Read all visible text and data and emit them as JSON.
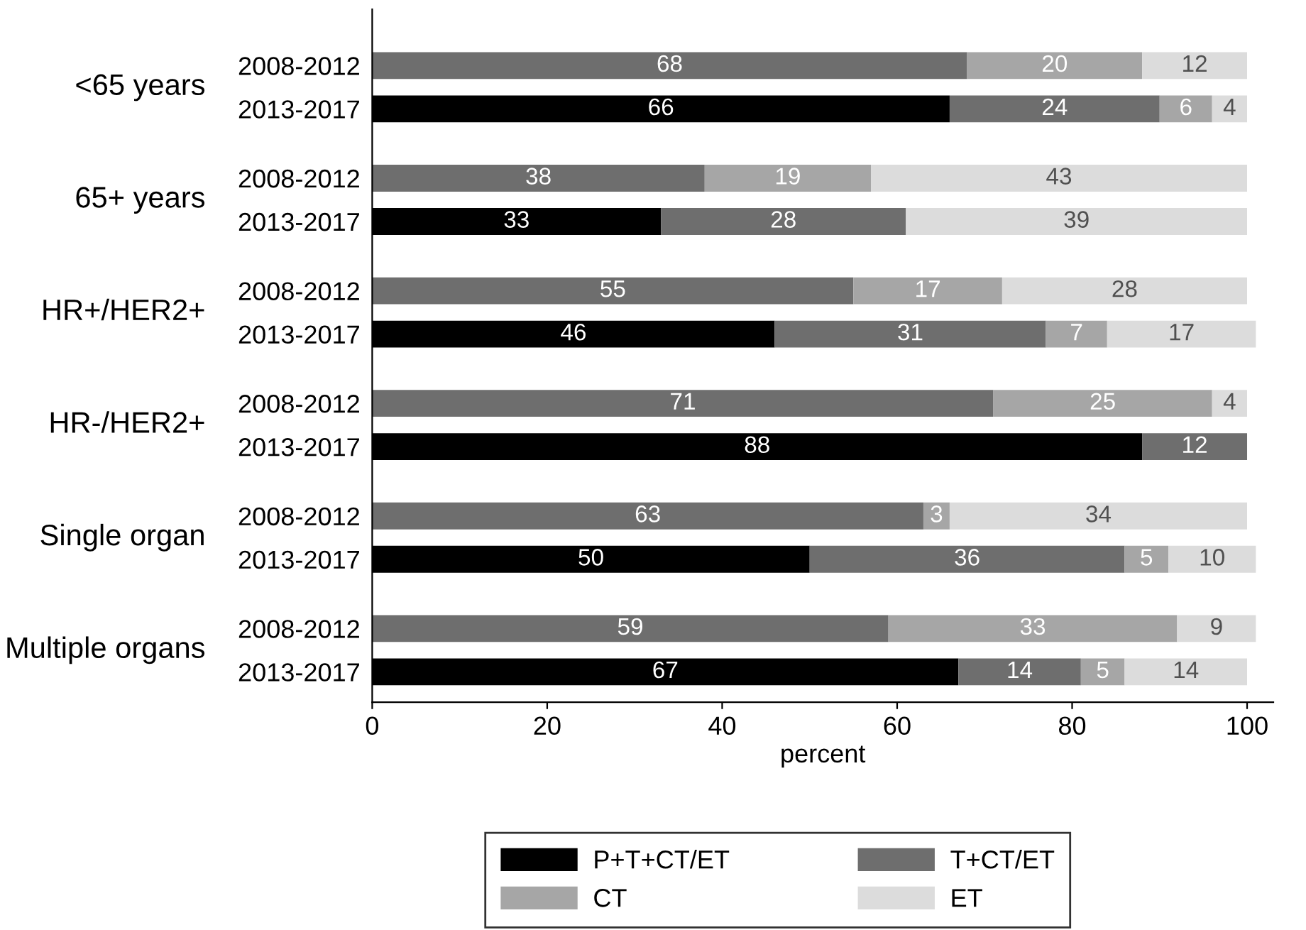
{
  "chart_data": {
    "type": "bar",
    "orientation": "horizontal",
    "stacked": true,
    "xlabel": "percent",
    "xlim": [
      0,
      103
    ],
    "xticks": [
      0,
      20,
      40,
      60,
      80,
      100
    ],
    "legend": "bottom",
    "grid": false,
    "data_labels": true,
    "categories": [
      "2008-2012",
      "2013-2017",
      "2008-2012",
      "2013-2017",
      "2008-2012",
      "2013-2017",
      "2008-2012",
      "2013-2017",
      "2008-2012",
      "2013-2017",
      "2008-2012",
      "2013-2017"
    ],
    "annotations": [
      "<65 years",
      "65+ years",
      "HR+/HER2+",
      "HR-/HER2+",
      "Single organ",
      "Multiple organs"
    ],
    "series": [
      {
        "name": "P+T+CT/ET",
        "color": "#000000",
        "values": [
          null,
          66,
          null,
          33,
          null,
          46,
          null,
          88,
          null,
          50,
          null,
          67
        ]
      },
      {
        "name": "T+CT/ET",
        "color": "#6e6e6e",
        "values": [
          68,
          24,
          38,
          28,
          55,
          31,
          71,
          12,
          63,
          36,
          59,
          14
        ]
      },
      {
        "name": "CT",
        "color": "#a6a6a6",
        "values": [
          20,
          6,
          19,
          null,
          17,
          7,
          25,
          null,
          3,
          5,
          33,
          5
        ]
      },
      {
        "name": "ET",
        "color": "#dcdcdc",
        "values": [
          12,
          4,
          43,
          39,
          28,
          17,
          4,
          null,
          34,
          10,
          9,
          14
        ]
      }
    ]
  }
}
